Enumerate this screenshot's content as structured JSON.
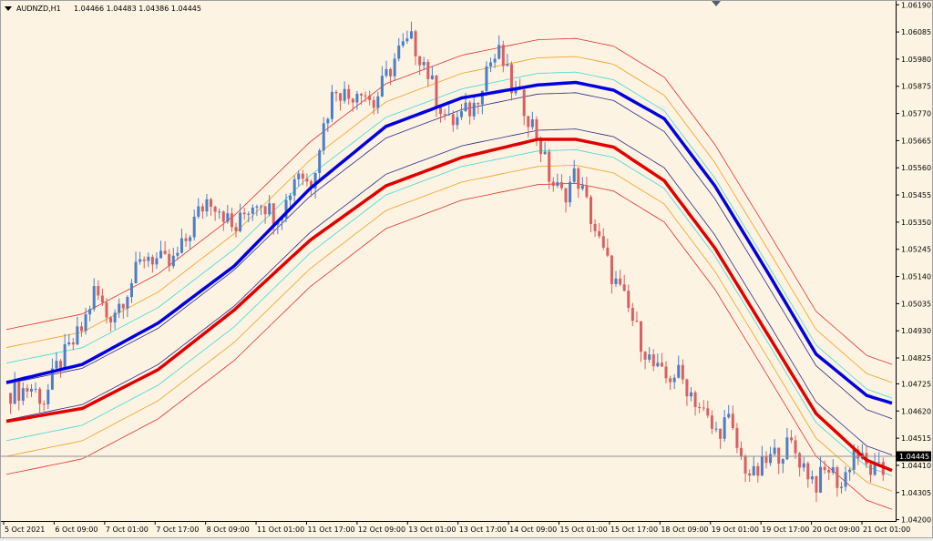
{
  "header": {
    "symbol": "AUDNZD,H1",
    "ohlc": "1.04466 1.04483 1.04386 1.04445"
  },
  "colors": {
    "background": "#fdf3e2",
    "bull_candle": "#4a7ec8",
    "bear_candle": "#d86060",
    "ma_blue": "#0000e0",
    "ma_red": "#e00000",
    "band_navy": "#2a2a8a",
    "band_cyan": "#40d8d8",
    "band_orange": "#f0a020",
    "band_red": "#e03030",
    "price_line": "#909090"
  },
  "chart_data": {
    "type": "line",
    "symbol": "AUDNZD",
    "timeframe": "H1",
    "x_tick_labels": [
      "5 Oct 2021",
      "6 Oct 09:00",
      "7 Oct 01:00",
      "7 Oct 17:00",
      "8 Oct 09:00",
      "11 Oct 01:00",
      "11 Oct 17:00",
      "12 Oct 09:00",
      "13 Oct 01:00",
      "13 Oct 17:00",
      "14 Oct 09:00",
      "15 Oct 01:00",
      "15 Oct 17:00",
      "18 Oct 09:00",
      "19 Oct 01:00",
      "19 Oct 17:00",
      "20 Oct 09:00",
      "21 Oct 01:00"
    ],
    "y_tick_labels": [
      "1.06190",
      "1.06085",
      "1.05980",
      "1.05875",
      "1.05770",
      "1.05665",
      "1.05560",
      "1.05455",
      "1.05350",
      "1.05245",
      "1.05140",
      "1.05035",
      "1.04930",
      "1.04825",
      "1.04725",
      "1.04620",
      "1.04515",
      "1.04410",
      "1.04305",
      "1.04200"
    ],
    "ylim": [
      1.04195,
      1.06205
    ],
    "current_price": "1.04445",
    "close_path": [
      [
        0,
        1.0469
      ],
      [
        2,
        1.0471
      ],
      [
        3,
        1.0466
      ],
      [
        4,
        1.0479
      ],
      [
        5,
        1.0486
      ],
      [
        6,
        1.0494
      ],
      [
        7,
        1.0509
      ],
      [
        8,
        1.0498
      ],
      [
        9,
        1.0504
      ],
      [
        10,
        1.0513
      ],
      [
        11,
        1.0523
      ],
      [
        12,
        1.052
      ],
      [
        13,
        1.0518
      ],
      [
        14,
        1.0526
      ],
      [
        15,
        1.0537
      ],
      [
        16,
        1.0545
      ],
      [
        17,
        1.054
      ],
      [
        18,
        1.0531
      ],
      [
        19,
        1.054
      ],
      [
        20,
        1.0545
      ],
      [
        21,
        1.0538
      ],
      [
        22,
        1.0541
      ],
      [
        23,
        1.0556
      ],
      [
        24,
        1.0549
      ],
      [
        25,
        1.0571
      ],
      [
        26,
        1.0588
      ],
      [
        27,
        1.0583
      ],
      [
        28,
        1.0588
      ],
      [
        29,
        1.058
      ],
      [
        30,
        1.0591
      ],
      [
        31,
        1.0601
      ],
      [
        32,
        1.0605
      ],
      [
        33,
        1.0597
      ],
      [
        34,
        1.0583
      ],
      [
        35,
        1.0573
      ],
      [
        36,
        1.0576
      ],
      [
        37,
        1.058
      ],
      [
        38,
        1.0596
      ],
      [
        39,
        1.06
      ],
      [
        40,
        1.0586
      ],
      [
        41,
        1.0579
      ],
      [
        42,
        1.0568
      ],
      [
        43,
        1.0551
      ],
      [
        44,
        1.0545
      ],
      [
        45,
        1.0554
      ],
      [
        46,
        1.054
      ],
      [
        47,
        1.0525
      ],
      [
        48,
        1.0513
      ],
      [
        49,
        1.0503
      ],
      [
        50,
        1.0491
      ],
      [
        51,
        1.048
      ],
      [
        52,
        1.0474
      ],
      [
        53,
        1.0477
      ],
      [
        54,
        1.047
      ],
      [
        55,
        1.0462
      ],
      [
        56,
        1.0453
      ],
      [
        57,
        1.0459
      ],
      [
        58,
        1.0444
      ],
      [
        59,
        1.0436
      ],
      [
        60,
        1.0442
      ],
      [
        61,
        1.0446
      ],
      [
        62,
        1.0449
      ],
      [
        63,
        1.0441
      ],
      [
        64,
        1.0434
      ],
      [
        65,
        1.044
      ],
      [
        66,
        1.0433
      ],
      [
        67,
        1.0447
      ],
      [
        68,
        1.044
      ],
      [
        69,
        1.0438
      ]
    ],
    "series": [
      {
        "color": "#0000e0",
        "values": [
          [
            0,
            1.0473
          ],
          [
            6,
            1.048
          ],
          [
            12,
            1.0496
          ],
          [
            18,
            1.0518
          ],
          [
            24,
            1.0548
          ],
          [
            30,
            1.0572
          ],
          [
            36,
            1.0583
          ],
          [
            42,
            1.0588
          ],
          [
            45,
            1.0589
          ],
          [
            48,
            1.0586
          ],
          [
            52,
            1.0575
          ],
          [
            56,
            1.0549
          ],
          [
            60,
            1.0517
          ],
          [
            64,
            1.0484
          ],
          [
            68,
            1.0468
          ],
          [
            70,
            1.0465
          ]
        ]
      },
      {
        "color": "#e00000",
        "values": [
          [
            0,
            1.0458
          ],
          [
            6,
            1.0463
          ],
          [
            12,
            1.0478
          ],
          [
            18,
            1.0501
          ],
          [
            24,
            1.0528
          ],
          [
            30,
            1.0549
          ],
          [
            36,
            1.056
          ],
          [
            42,
            1.0567
          ],
          [
            45,
            1.0567
          ],
          [
            48,
            1.0564
          ],
          [
            52,
            1.0551
          ],
          [
            56,
            1.0525
          ],
          [
            60,
            1.0493
          ],
          [
            64,
            1.0461
          ],
          [
            68,
            1.0443
          ],
          [
            70,
            1.0439
          ]
        ]
      }
    ],
    "band_offsets": [
      0.0007,
      0.0015,
      0.0021,
      0.0028
    ]
  }
}
